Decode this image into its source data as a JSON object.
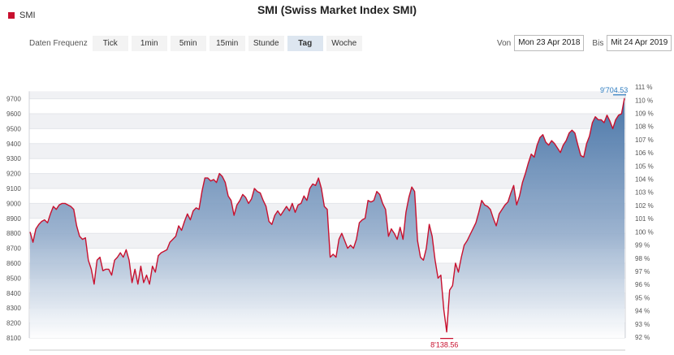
{
  "title": "SMI (Swiss Market Index SMI)",
  "legend": {
    "series_name": "SMI",
    "color": "#c8102e"
  },
  "frequency": {
    "label": "Daten Frequenz",
    "options": [
      "Tick",
      "1min",
      "5min",
      "15min",
      "Stunde",
      "Tag",
      "Woche"
    ],
    "selected": "Tag"
  },
  "date_range": {
    "from_label": "Von",
    "from_value": "Mon 23 Apr 2018",
    "to_label": "Bis",
    "to_value": "Mit 24 Apr 2019"
  },
  "chart_data": {
    "type": "area",
    "series": [
      {
        "name": "SMI",
        "values": [
          8810,
          8740,
          8830,
          8860,
          8880,
          8890,
          8870,
          8930,
          8980,
          8960,
          8990,
          9000,
          9000,
          8990,
          8980,
          8960,
          8850,
          8780,
          8760,
          8770,
          8620,
          8560,
          8460,
          8620,
          8640,
          8550,
          8560,
          8560,
          8520,
          8620,
          8640,
          8670,
          8640,
          8690,
          8620,
          8470,
          8560,
          8460,
          8580,
          8470,
          8520,
          8460,
          8580,
          8540,
          8650,
          8670,
          8680,
          8690,
          8740,
          8760,
          8780,
          8850,
          8820,
          8880,
          8930,
          8890,
          8950,
          8970,
          8960,
          9080,
          9170,
          9170,
          9150,
          9160,
          9140,
          9200,
          9180,
          9140,
          9050,
          9020,
          8920,
          8990,
          9020,
          9060,
          9040,
          9000,
          9030,
          9100,
          9080,
          9070,
          9020,
          8980,
          8880,
          8860,
          8920,
          8950,
          8920,
          8950,
          8980,
          8950,
          9000,
          8940,
          8990,
          9000,
          9050,
          9020,
          9100,
          9130,
          9120,
          9170,
          9100,
          8980,
          8960,
          8640,
          8660,
          8640,
          8760,
          8800,
          8750,
          8700,
          8720,
          8700,
          8760,
          8870,
          8890,
          8900,
          9020,
          9010,
          9020,
          9080,
          9060,
          9000,
          8960,
          8780,
          8830,
          8800,
          8760,
          8840,
          8760,
          8940,
          9040,
          9110,
          9080,
          8750,
          8640,
          8620,
          8700,
          8860,
          8780,
          8620,
          8500,
          8520,
          8290,
          8140,
          8420,
          8450,
          8600,
          8540,
          8640,
          8720,
          8750,
          8790,
          8830,
          8870,
          8940,
          9020,
          8990,
          8980,
          8960,
          8900,
          8850,
          8930,
          8960,
          8990,
          9010,
          9070,
          9120,
          8990,
          9050,
          9140,
          9200,
          9270,
          9330,
          9310,
          9390,
          9440,
          9460,
          9410,
          9390,
          9420,
          9400,
          9370,
          9340,
          9390,
          9420,
          9470,
          9490,
          9470,
          9390,
          9320,
          9310,
          9400,
          9450,
          9540,
          9580,
          9560,
          9560,
          9540,
          9590,
          9550,
          9500,
          9560,
          9590,
          9600,
          9704.53
        ]
      }
    ],
    "ylim": [
      8100,
      9750
    ],
    "y_ticks_left": [
      "8100",
      "8200",
      "8300",
      "8400",
      "8500",
      "8600",
      "8700",
      "8800",
      "8900",
      "9000",
      "9100",
      "9200",
      "9300",
      "9400",
      "9500",
      "9600",
      "9700"
    ],
    "y_ticks_right": [
      "92 %",
      "93 %",
      "94 %",
      "95 %",
      "96 %",
      "97 %",
      "98 %",
      "99 %",
      "100 %",
      "101 %",
      "102 %",
      "103 %",
      "104 %",
      "105 %",
      "106 %",
      "107 %",
      "108 %",
      "109 %",
      "110 %",
      "111 %"
    ],
    "annotations": {
      "max_label": "9'704.53",
      "min_label": "8'138.56"
    },
    "line_color": "#c8102e",
    "fill_top_color": "#4a76a8",
    "fill_bottom_color": "#ffffff",
    "grid": "horizontal-bands"
  }
}
